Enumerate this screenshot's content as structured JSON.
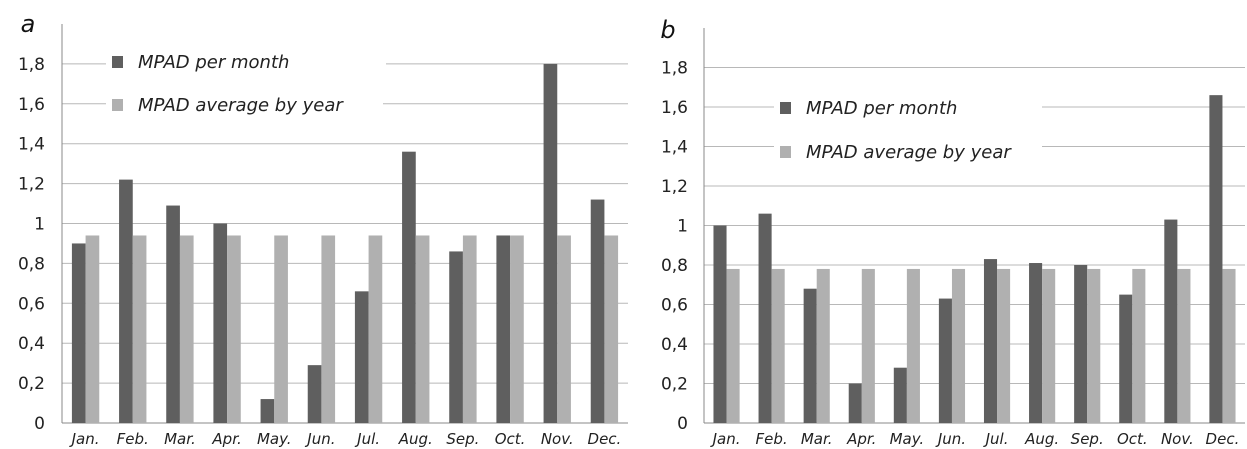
{
  "chart_data": [
    {
      "type": "bar",
      "panel_label": "a",
      "categories": [
        "Jan.",
        "Feb.",
        "Mar.",
        "Apr.",
        "May.",
        "Jun.",
        "Jul.",
        "Aug.",
        "Sep.",
        "Oct.",
        "Nov.",
        "Dec."
      ],
      "series": [
        {
          "name": "MPAD per month",
          "color": "#5f5f5f",
          "values": [
            0.9,
            1.22,
            1.09,
            1.0,
            0.12,
            0.29,
            0.66,
            1.36,
            0.86,
            0.94,
            1.8,
            1.12
          ]
        },
        {
          "name": "MPAD average by year",
          "color": "#b0b0b0",
          "values": [
            0.94,
            0.94,
            0.94,
            0.94,
            0.94,
            0.94,
            0.94,
            0.94,
            0.94,
            0.94,
            0.94,
            0.94
          ]
        }
      ],
      "yticks": [
        "0",
        "0,2",
        "0,4",
        "0,6",
        "0,8",
        "1",
        "1,2",
        "1,4",
        "1,6",
        "1,8"
      ],
      "ylim": [
        0,
        2
      ],
      "grid": true,
      "legend_position": "top-left"
    },
    {
      "type": "bar",
      "panel_label": "b",
      "categories": [
        "Jan.",
        "Feb.",
        "Mar.",
        "Apr.",
        "May.",
        "Jun.",
        "Jul.",
        "Aug.",
        "Sep.",
        "Oct.",
        "Nov.",
        "Dec."
      ],
      "series": [
        {
          "name": "MPAD per month",
          "color": "#5f5f5f",
          "values": [
            1.0,
            1.06,
            0.68,
            0.2,
            0.28,
            0.63,
            0.83,
            0.81,
            0.8,
            0.65,
            1.03,
            1.66
          ]
        },
        {
          "name": "MPAD average by year",
          "color": "#b0b0b0",
          "values": [
            0.78,
            0.78,
            0.78,
            0.78,
            0.78,
            0.78,
            0.78,
            0.78,
            0.78,
            0.78,
            0.78,
            0.78
          ]
        }
      ],
      "yticks": [
        "0",
        "0,2",
        "0,4",
        "0,6",
        "0,8",
        "1",
        "1,2",
        "1,4",
        "1,6",
        "1,8"
      ],
      "ylim": [
        0,
        2
      ],
      "grid": true,
      "legend_position": "middle-left"
    }
  ]
}
